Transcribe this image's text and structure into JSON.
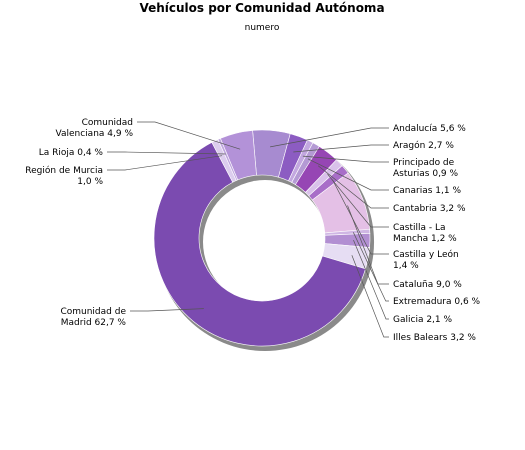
{
  "chart_data": {
    "type": "donut",
    "title": "Vehículos por Comunidad Autónoma",
    "subtitle": "numero",
    "unit": "%",
    "slices": [
      {
        "name": "Andalucía",
        "value": 5.6,
        "label": [
          "Andalucía 5,6 %"
        ],
        "color": "#a78bd0"
      },
      {
        "name": "Aragón",
        "value": 2.7,
        "label": [
          "Aragón 2,7 %"
        ],
        "color": "#8c5cc2"
      },
      {
        "name": "Principado de Asturias",
        "value": 0.9,
        "label": [
          "Principado de",
          "Asturias 0,9 %"
        ],
        "color": "#c3a8e0"
      },
      {
        "name": "Canarias",
        "value": 1.1,
        "label": [
          "Canarias 1,1 %"
        ],
        "color": "#b49ad4"
      },
      {
        "name": "Cantabria",
        "value": 3.2,
        "label": [
          "Cantabria 3,2 %"
        ],
        "color": "#9646b4"
      },
      {
        "name": "Castilla - La Mancha",
        "value": 1.2,
        "label": [
          "Castilla - La",
          "Mancha 1,2 %"
        ],
        "color": "#d9c2ea"
      },
      {
        "name": "Castilla y León",
        "value": 1.4,
        "label": [
          "Castilla y León",
          "1,4 %"
        ],
        "color": "#a86ec8"
      },
      {
        "name": "Cataluña",
        "value": 9.0,
        "label": [
          "Cataluña 9,0 %"
        ],
        "color": "#e4c0e6"
      },
      {
        "name": "Extremadura",
        "value": 0.6,
        "label": [
          "Extremadura 0,6 %"
        ],
        "color": "#cfb6e4"
      },
      {
        "name": "Galicia",
        "value": 2.1,
        "label": [
          "Galicia 2,1 %"
        ],
        "color": "#b28fd2"
      },
      {
        "name": "Illes Balears",
        "value": 3.2,
        "label": [
          "Illes Balears 3,2 %"
        ],
        "color": "#e6ddf3"
      },
      {
        "name": "Comunidad de Madrid",
        "value": 62.7,
        "label": [
          "Comunidad de",
          "Madrid 62,7 %"
        ],
        "color": "#7b4bb0"
      },
      {
        "name": "Región de Murcia",
        "value": 1.0,
        "label": [
          "Región de Murcia",
          "1,0 %"
        ],
        "color": "#dccdee"
      },
      {
        "name": "La Rioja",
        "value": 0.4,
        "label": [
          "La Rioja 0,4 %"
        ],
        "color": "#bfa6de"
      },
      {
        "name": "Comunidad Valenciana",
        "value": 4.9,
        "label": [
          "Comunidad",
          "Valenciana 4,9 %"
        ],
        "color": "#b392d8"
      }
    ]
  }
}
